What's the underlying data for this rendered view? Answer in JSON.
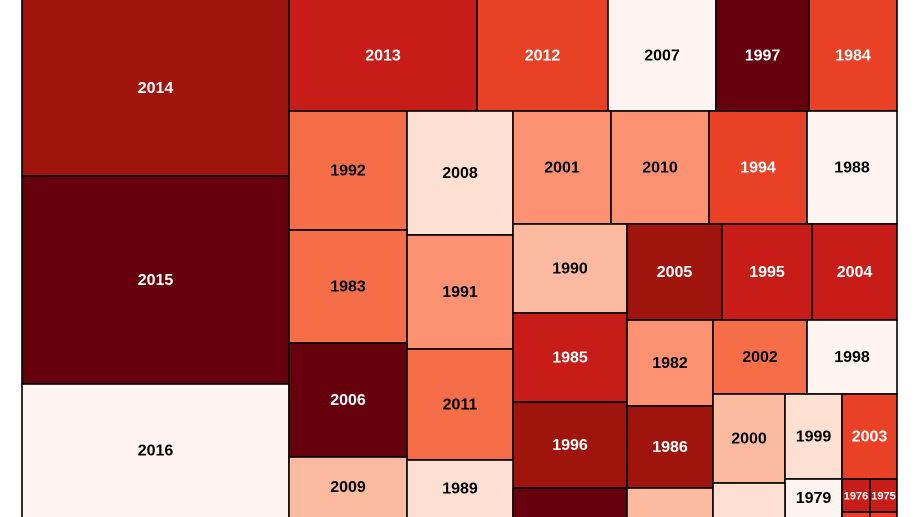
{
  "chart_data": {
    "type": "treemap",
    "title": "",
    "color_scale": "light to dark red",
    "tiles": [
      {
        "label": "2014",
        "level": 0.85,
        "text_color": "#ffffff"
      },
      {
        "label": "2015",
        "level": 1.0,
        "text_color": "#ffffff"
      },
      {
        "label": "2016",
        "level": 0.0,
        "text_color": "#000000"
      },
      {
        "label": "2013",
        "level": 0.75,
        "text_color": "#ffffff"
      },
      {
        "label": "2012",
        "level": 0.62,
        "text_color": "#ffffff"
      },
      {
        "label": "2007",
        "level": 0.0,
        "text_color": "#000000"
      },
      {
        "label": "1997",
        "level": 1.0,
        "text_color": "#ffffff"
      },
      {
        "label": "1984",
        "level": 0.62,
        "text_color": "#ffffff"
      },
      {
        "label": "1992",
        "level": 0.5,
        "text_color": "#000000"
      },
      {
        "label": "2008",
        "level": 0.12,
        "text_color": "#000000"
      },
      {
        "label": "2001",
        "level": 0.38,
        "text_color": "#000000"
      },
      {
        "label": "2010",
        "level": 0.38,
        "text_color": "#000000"
      },
      {
        "label": "1994",
        "level": 0.62,
        "text_color": "#ffffff"
      },
      {
        "label": "1988",
        "level": 0.0,
        "text_color": "#000000"
      },
      {
        "label": "1983",
        "level": 0.5,
        "text_color": "#000000"
      },
      {
        "label": "1991",
        "level": 0.38,
        "text_color": "#000000"
      },
      {
        "label": "1990",
        "level": 0.25,
        "text_color": "#000000"
      },
      {
        "label": "2005",
        "level": 0.85,
        "text_color": "#ffffff"
      },
      {
        "label": "1995",
        "level": 0.75,
        "text_color": "#ffffff"
      },
      {
        "label": "2004",
        "level": 0.75,
        "text_color": "#ffffff"
      },
      {
        "label": "2006",
        "level": 1.0,
        "text_color": "#ffffff"
      },
      {
        "label": "2011",
        "level": 0.5,
        "text_color": "#000000"
      },
      {
        "label": "1985",
        "level": 0.75,
        "text_color": "#ffffff"
      },
      {
        "label": "1982",
        "level": 0.38,
        "text_color": "#000000"
      },
      {
        "label": "2002",
        "level": 0.5,
        "text_color": "#000000"
      },
      {
        "label": "1998",
        "level": 0.0,
        "text_color": "#000000"
      },
      {
        "label": "1996",
        "level": 0.85,
        "text_color": "#ffffff"
      },
      {
        "label": "1986",
        "level": 0.85,
        "text_color": "#ffffff"
      },
      {
        "label": "2000",
        "level": 0.25,
        "text_color": "#000000"
      },
      {
        "label": "1999",
        "level": 0.12,
        "text_color": "#000000"
      },
      {
        "label": "2003",
        "level": 0.62,
        "text_color": "#ffffff"
      },
      {
        "label": "2009",
        "level": 0.25,
        "text_color": "#000000"
      },
      {
        "label": "1989",
        "level": 0.12,
        "text_color": "#000000"
      },
      {
        "label": "1979",
        "level": 0.0,
        "text_color": "#000000"
      },
      {
        "label": "1976",
        "level": 0.75,
        "text_color": "#ffffff"
      },
      {
        "label": "1975",
        "level": 0.75,
        "text_color": "#ffffff"
      },
      {
        "label": "",
        "level": 1.0,
        "text_color": "#ffffff"
      },
      {
        "label": "",
        "level": 0.25,
        "text_color": "#000000"
      },
      {
        "label": "",
        "level": 0.12,
        "text_color": "#000000"
      },
      {
        "label": "",
        "level": 0.62,
        "text_color": "#ffffff"
      },
      {
        "label": "",
        "level": 0.62,
        "text_color": "#ffffff"
      }
    ]
  }
}
